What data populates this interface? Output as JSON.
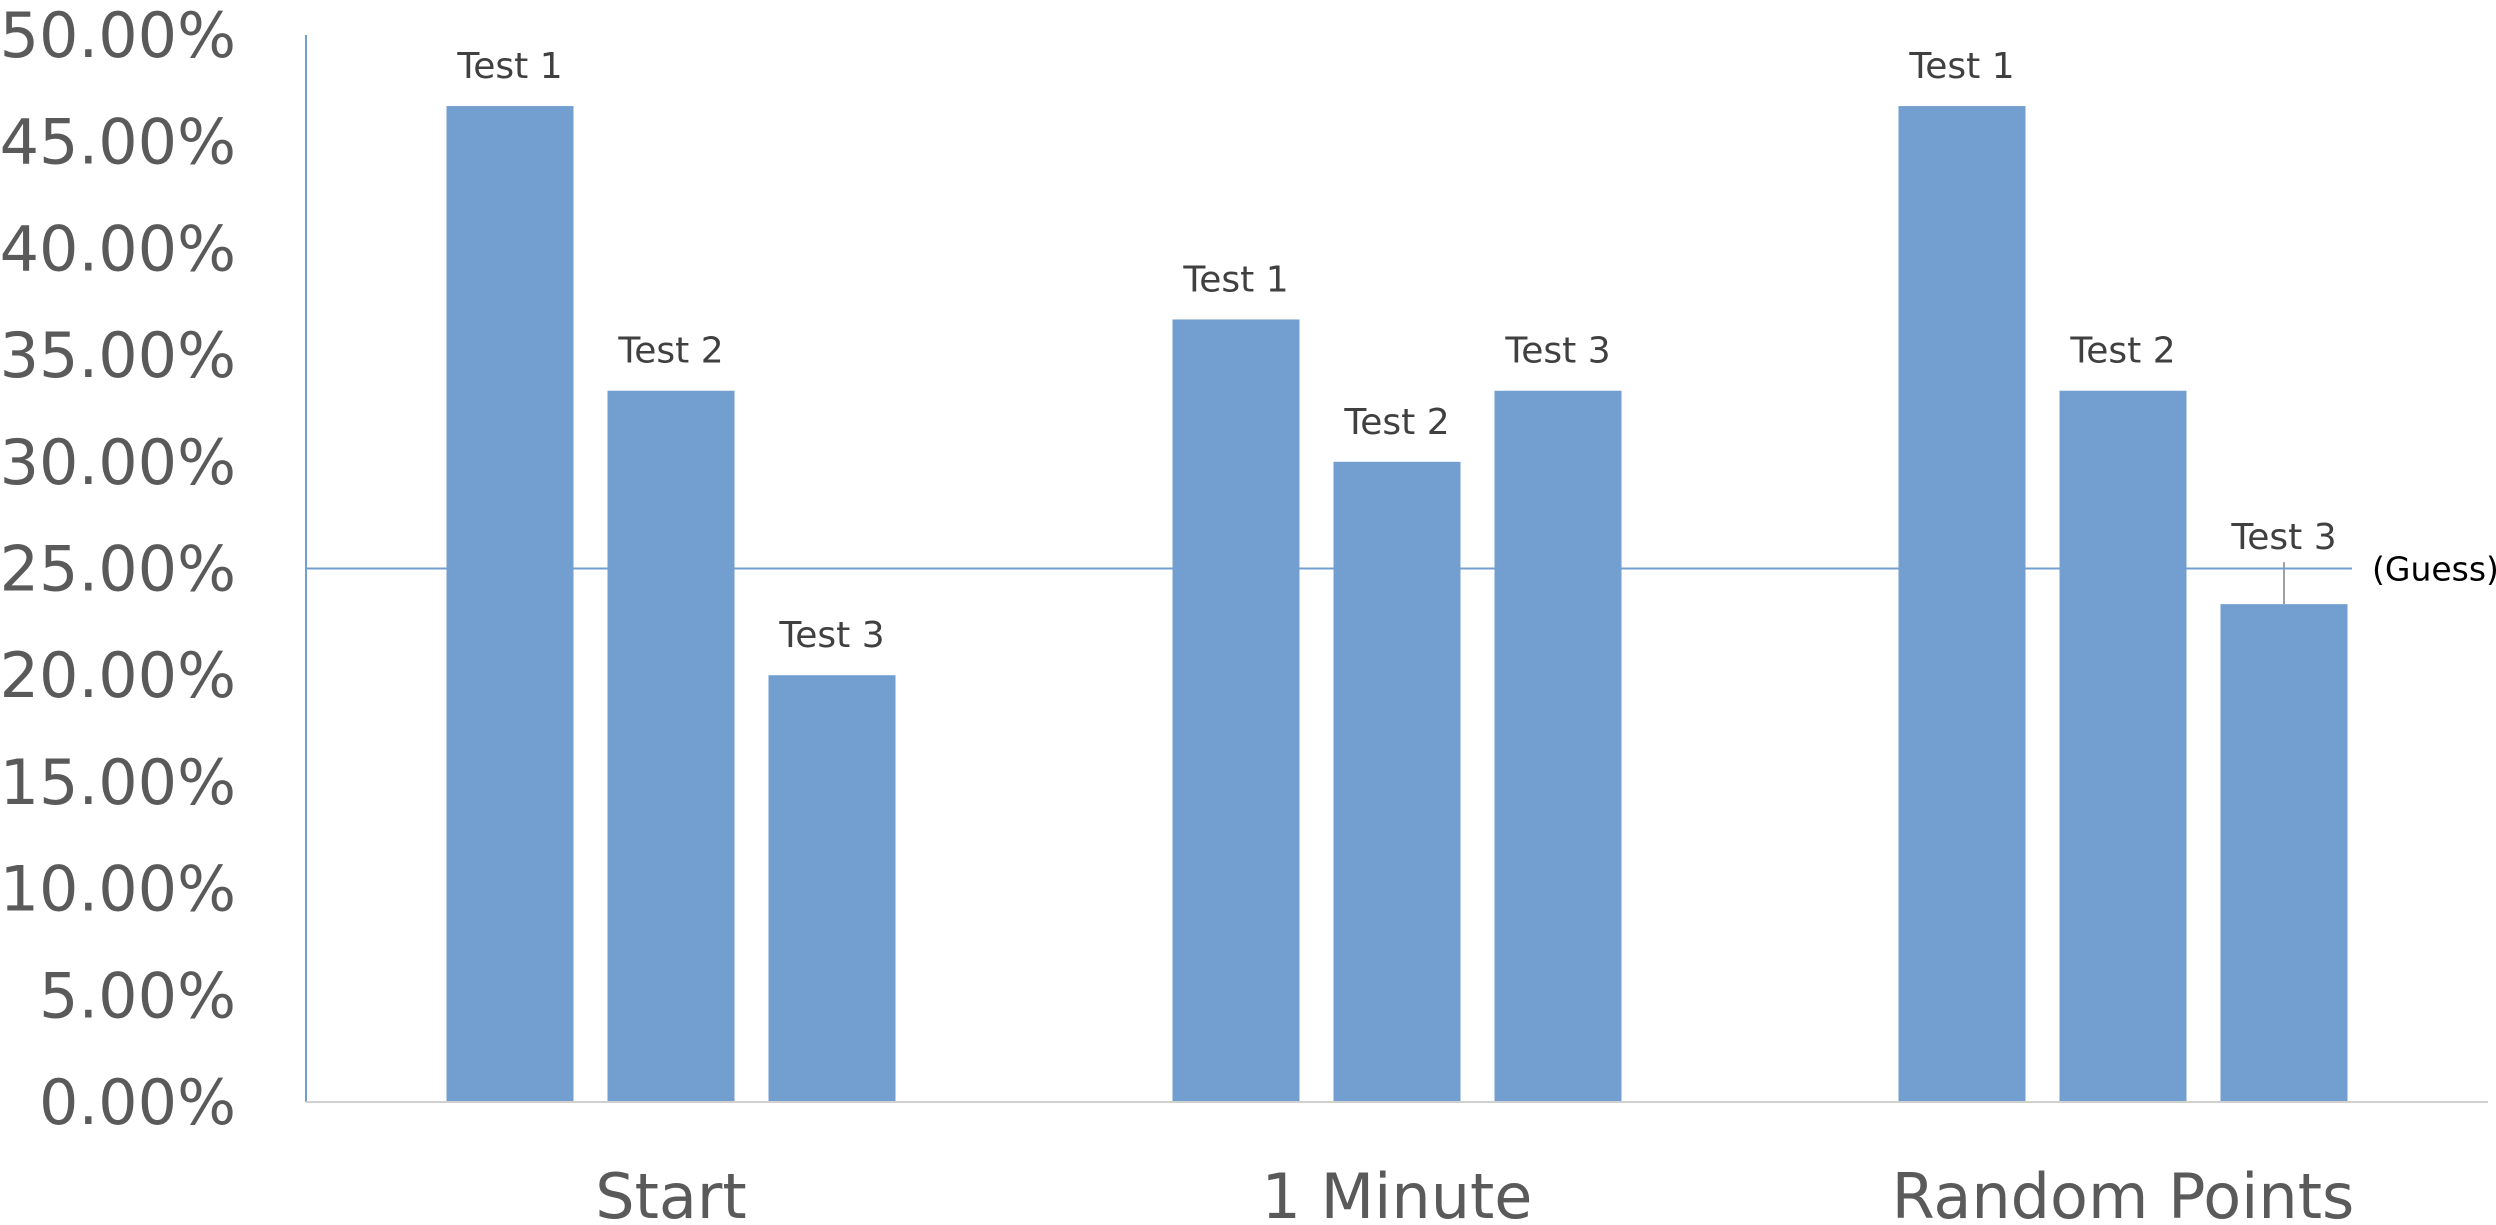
{
  "chart_data": {
    "type": "bar",
    "title": "",
    "xlabel": "",
    "ylabel": "",
    "ylim": [
      0,
      50
    ],
    "y_ticks": [
      "0.00%",
      "5.00%",
      "10.00%",
      "15.00%",
      "20.00%",
      "25.00%",
      "30.00%",
      "35.00%",
      "40.00%",
      "45.00%",
      "50.00%"
    ],
    "categories": [
      "Start",
      "1 Minute",
      "Random Points"
    ],
    "bar_color": "#729FCF",
    "groups": [
      {
        "category": "Start",
        "bars": [
          {
            "label": "Test 1",
            "value": 46.67
          },
          {
            "label": "Test 2",
            "value": 33.33
          },
          {
            "label": "Test 3",
            "value": 20.0
          }
        ]
      },
      {
        "category": "1 Minute",
        "bars": [
          {
            "label": "Test 1",
            "value": 36.67
          },
          {
            "label": "Test 2",
            "value": 30.0
          },
          {
            "label": "Test 3",
            "value": 33.33
          }
        ]
      },
      {
        "category": "Random Points",
        "bars": [
          {
            "label": "Test 1",
            "value": 46.67
          },
          {
            "label": "Test 2",
            "value": 33.33
          },
          {
            "label": "Test 3",
            "value": 23.33
          }
        ]
      }
    ],
    "reference_line": {
      "value": 25,
      "label": "(Guess)",
      "color": "#729FCF"
    },
    "grid": false,
    "legend": "none"
  }
}
